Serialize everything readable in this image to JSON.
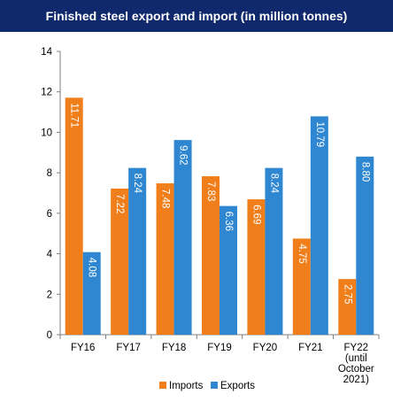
{
  "title": "Finished steel export and import (in million tonnes)",
  "colors": {
    "title_bg": "#10286c",
    "imports": "#f07f1b",
    "exports": "#2e87d0",
    "axis": "#7f7f7f"
  },
  "chart_data": {
    "type": "bar",
    "title": "Finished steel export and import (in million tonnes)",
    "categories": [
      [
        "FY16"
      ],
      [
        "FY17"
      ],
      [
        "FY18"
      ],
      [
        "FY19"
      ],
      [
        "FY20"
      ],
      [
        "FY21"
      ],
      [
        "FY22",
        "(until",
        "October",
        "2021)"
      ]
    ],
    "series": [
      {
        "name": "Imports",
        "color": "#f07f1b",
        "values": [
          11.71,
          7.22,
          7.48,
          7.83,
          6.69,
          4.75,
          2.75
        ],
        "labels": [
          "11.71",
          "7.22",
          "7.48",
          "7.83",
          "6.69",
          "4.75",
          "2.75"
        ]
      },
      {
        "name": "Exports",
        "color": "#2e87d0",
        "values": [
          4.08,
          8.24,
          9.62,
          6.36,
          8.24,
          10.79,
          8.8
        ],
        "labels": [
          "4.08",
          "8.24",
          "9.62",
          "6.36",
          "8.24",
          "10.79",
          "8.80"
        ]
      }
    ],
    "ylim": [
      0,
      14
    ],
    "yticks": [
      0,
      2,
      4,
      6,
      8,
      10,
      12,
      14
    ],
    "grid": false,
    "legend": "bottom-center"
  }
}
